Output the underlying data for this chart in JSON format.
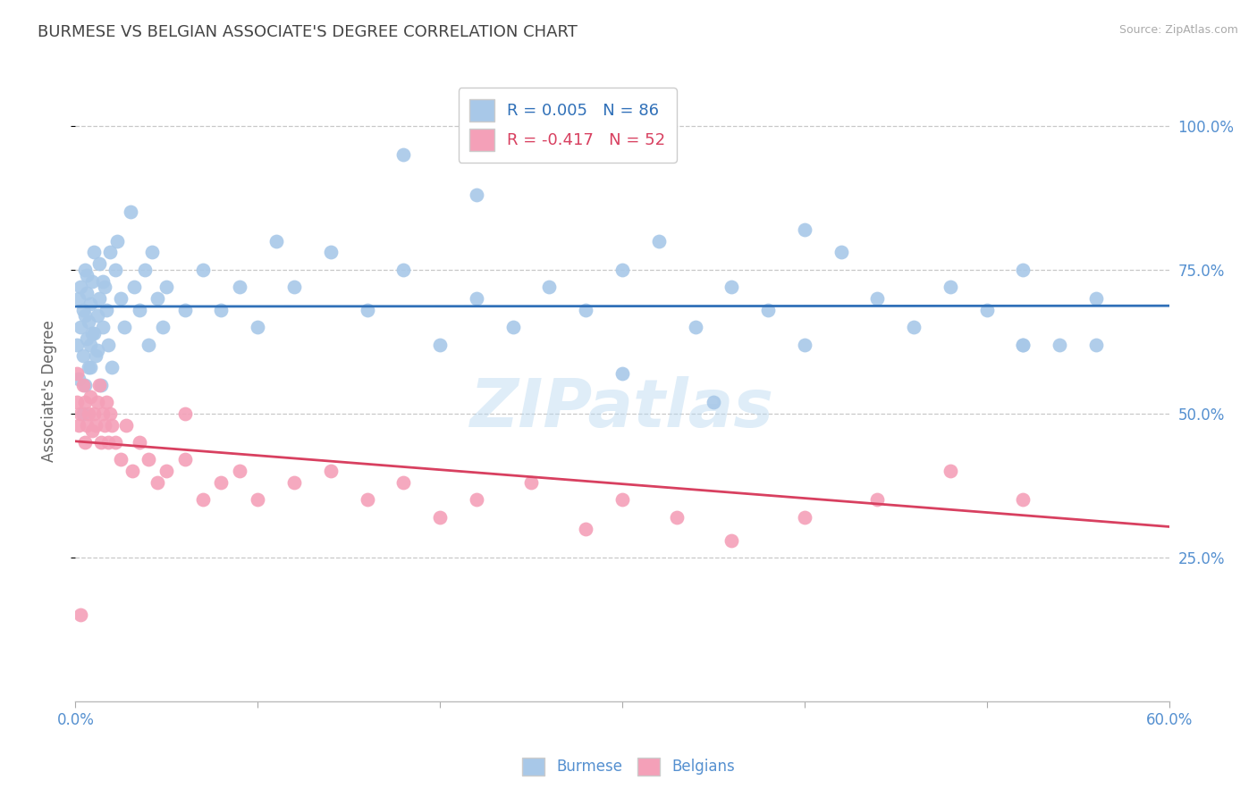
{
  "title": "BURMESE VS BELGIAN ASSOCIATE'S DEGREE CORRELATION CHART",
  "source": "Source: ZipAtlas.com",
  "xlabel_burmese": "Burmese",
  "xlabel_belgian": "Belgians",
  "ylabel": "Associate's Degree",
  "xlim": [
    0.0,
    0.6
  ],
  "ylim": [
    0.0,
    1.08
  ],
  "yticks": [
    0.25,
    0.5,
    0.75,
    1.0
  ],
  "xticks": [
    0.0,
    0.1,
    0.2,
    0.3,
    0.4,
    0.5,
    0.6
  ],
  "burmese_R": 0.005,
  "burmese_N": 86,
  "belgian_R": -0.417,
  "belgian_N": 52,
  "burmese_color": "#a8c8e8",
  "belgian_color": "#f4a0b8",
  "burmese_line_color": "#3070b8",
  "belgian_line_color": "#d84060",
  "bg_color": "#ffffff",
  "grid_color": "#c8c8c8",
  "title_color": "#444444",
  "tick_color": "#5590d0",
  "watermark": "ZIPatlas",
  "burmese_x": [
    0.001,
    0.002,
    0.002,
    0.003,
    0.003,
    0.004,
    0.004,
    0.005,
    0.005,
    0.006,
    0.006,
    0.007,
    0.007,
    0.008,
    0.008,
    0.009,
    0.01,
    0.01,
    0.011,
    0.012,
    0.013,
    0.013,
    0.014,
    0.015,
    0.016,
    0.017,
    0.018,
    0.019,
    0.02,
    0.022,
    0.023,
    0.025,
    0.027,
    0.03,
    0.032,
    0.035,
    0.038,
    0.04,
    0.042,
    0.045,
    0.048,
    0.05,
    0.06,
    0.07,
    0.08,
    0.09,
    0.1,
    0.11,
    0.12,
    0.14,
    0.16,
    0.18,
    0.2,
    0.22,
    0.24,
    0.26,
    0.28,
    0.3,
    0.32,
    0.34,
    0.36,
    0.38,
    0.4,
    0.42,
    0.44,
    0.46,
    0.48,
    0.5,
    0.52,
    0.54,
    0.56,
    0.004,
    0.005,
    0.006,
    0.008,
    0.009,
    0.012,
    0.015,
    0.18,
    0.22,
    0.3,
    0.35,
    0.4,
    0.52,
    0.56,
    0.52
  ],
  "burmese_y": [
    0.62,
    0.56,
    0.7,
    0.65,
    0.72,
    0.6,
    0.68,
    0.55,
    0.75,
    0.63,
    0.71,
    0.58,
    0.66,
    0.62,
    0.69,
    0.73,
    0.64,
    0.78,
    0.6,
    0.67,
    0.7,
    0.76,
    0.55,
    0.65,
    0.72,
    0.68,
    0.62,
    0.78,
    0.58,
    0.75,
    0.8,
    0.7,
    0.65,
    0.85,
    0.72,
    0.68,
    0.75,
    0.62,
    0.78,
    0.7,
    0.65,
    0.72,
    0.68,
    0.75,
    0.68,
    0.72,
    0.65,
    0.8,
    0.72,
    0.78,
    0.68,
    0.75,
    0.62,
    0.7,
    0.65,
    0.72,
    0.68,
    0.75,
    0.8,
    0.65,
    0.72,
    0.68,
    0.62,
    0.78,
    0.7,
    0.65,
    0.72,
    0.68,
    0.75,
    0.62,
    0.7,
    0.5,
    0.67,
    0.74,
    0.58,
    0.64,
    0.61,
    0.73,
    0.95,
    0.88,
    0.57,
    0.52,
    0.82,
    0.62,
    0.62,
    0.62
  ],
  "belgian_x": [
    0.001,
    0.002,
    0.003,
    0.004,
    0.005,
    0.005,
    0.006,
    0.007,
    0.008,
    0.009,
    0.01,
    0.011,
    0.012,
    0.013,
    0.014,
    0.015,
    0.016,
    0.017,
    0.018,
    0.019,
    0.02,
    0.022,
    0.025,
    0.028,
    0.031,
    0.035,
    0.04,
    0.045,
    0.05,
    0.06,
    0.07,
    0.08,
    0.09,
    0.1,
    0.12,
    0.14,
    0.16,
    0.18,
    0.2,
    0.22,
    0.25,
    0.28,
    0.3,
    0.33,
    0.36,
    0.4,
    0.44,
    0.48,
    0.52,
    0.001,
    0.003,
    0.06
  ],
  "belgian_y": [
    0.52,
    0.48,
    0.5,
    0.55,
    0.45,
    0.52,
    0.48,
    0.5,
    0.53,
    0.47,
    0.5,
    0.48,
    0.52,
    0.55,
    0.45,
    0.5,
    0.48,
    0.52,
    0.45,
    0.5,
    0.48,
    0.45,
    0.42,
    0.48,
    0.4,
    0.45,
    0.42,
    0.38,
    0.4,
    0.42,
    0.35,
    0.38,
    0.4,
    0.35,
    0.38,
    0.4,
    0.35,
    0.38,
    0.32,
    0.35,
    0.38,
    0.3,
    0.35,
    0.32,
    0.28,
    0.32,
    0.35,
    0.4,
    0.35,
    0.57,
    0.15,
    0.5
  ]
}
